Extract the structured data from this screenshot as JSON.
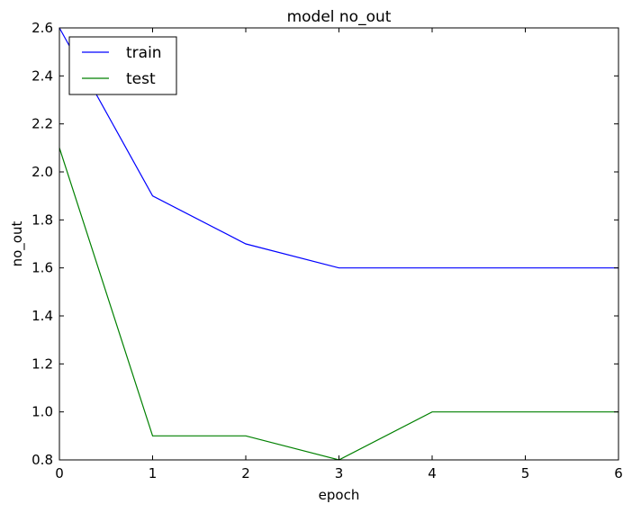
{
  "chart_data": {
    "type": "line",
    "title": "model no_out",
    "xlabel": "epoch",
    "ylabel": "no_out",
    "xlim": [
      0,
      6
    ],
    "ylim": [
      0.8,
      2.6
    ],
    "xticks": [
      "0",
      "1",
      "2",
      "3",
      "4",
      "5",
      "6"
    ],
    "yticks": [
      "0.8",
      "1.0",
      "1.2",
      "1.4",
      "1.6",
      "1.8",
      "2.0",
      "2.2",
      "2.4",
      "2.6"
    ],
    "x": [
      0,
      1,
      2,
      3,
      4,
      5,
      6
    ],
    "series": [
      {
        "name": "train",
        "color": "#0000ff",
        "values": [
          2.6,
          1.9,
          1.7,
          1.6,
          1.6,
          1.6,
          1.6
        ]
      },
      {
        "name": "test",
        "color": "#008000",
        "values": [
          2.1,
          0.9,
          0.9,
          0.8,
          1.0,
          1.0,
          1.0
        ]
      }
    ],
    "grid": false,
    "legend_position": "top-left"
  }
}
